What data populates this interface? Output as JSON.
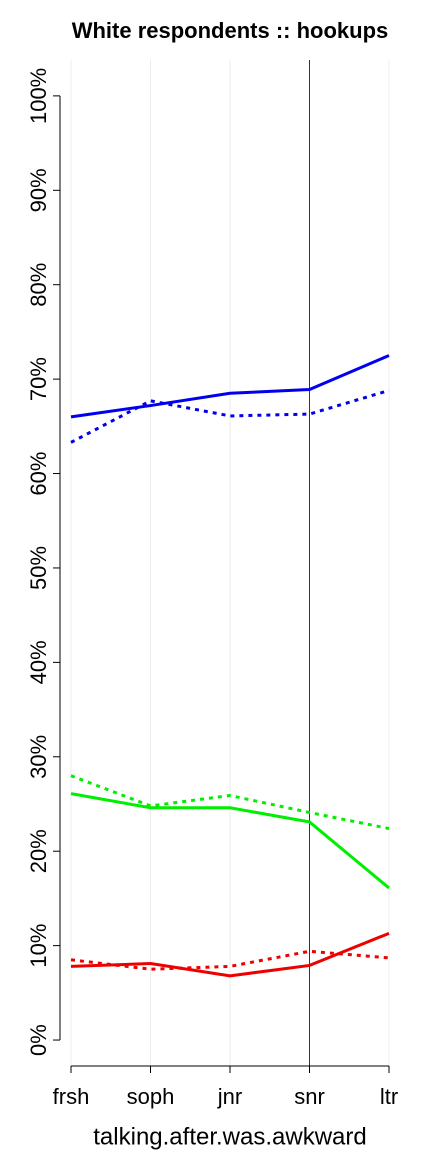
{
  "chart_data": {
    "type": "line",
    "title": "White respondents :: hookups",
    "x_label": "talking.after.was.awkward",
    "categories": [
      "frsh",
      "soph",
      "jnr",
      "snr",
      "ltr"
    ],
    "series": [
      {
        "color": "#0000ee",
        "linestyle": "solid",
        "values": [
          66,
          67.2,
          68.5,
          68.9,
          72.5
        ]
      },
      {
        "color": "#0000ee",
        "linestyle": "dotted",
        "values": [
          63.3,
          67.7,
          66.1,
          66.3,
          68.8
        ]
      },
      {
        "color": "#00ee00",
        "linestyle": "solid",
        "values": [
          26.1,
          24.6,
          24.6,
          23.1,
          16.1
        ]
      },
      {
        "color": "#00ee00",
        "linestyle": "dotted",
        "values": [
          28,
          24.8,
          25.9,
          24.1,
          22.4
        ]
      },
      {
        "color": "#ee0000",
        "linestyle": "solid",
        "values": [
          7.8,
          8.1,
          6.8,
          7.9,
          11.3
        ]
      },
      {
        "color": "#ee0000",
        "linestyle": "dotted",
        "values": [
          8.5,
          7.5,
          7.8,
          9.4,
          8.7
        ]
      }
    ],
    "ylim": [
      -2.75,
      103.8
    ],
    "yticks": [
      {
        "value": 0,
        "label": "0%"
      },
      {
        "value": 10,
        "label": "10%"
      },
      {
        "value": 20,
        "label": "20%"
      },
      {
        "value": 30,
        "label": "30%"
      },
      {
        "value": 40,
        "label": "40%"
      },
      {
        "value": 50,
        "label": "50%"
      },
      {
        "value": 60,
        "label": "60%"
      },
      {
        "value": 70,
        "label": "70%"
      },
      {
        "value": 80,
        "label": "80%"
      },
      {
        "value": 90,
        "label": "90%"
      },
      {
        "value": 100,
        "label": "100%"
      }
    ],
    "grid": "x",
    "vline": "snr"
  }
}
